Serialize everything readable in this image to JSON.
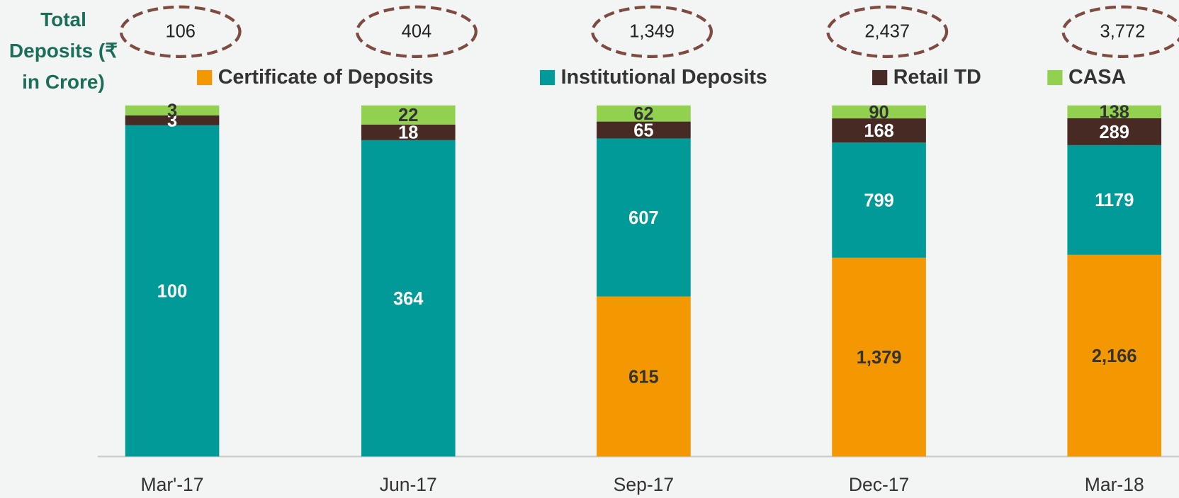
{
  "chart_data": {
    "type": "bar",
    "stacked": true,
    "normalized": true,
    "y_label": "Total Deposits (₹ in Crore)",
    "categories": [
      "Mar'-17",
      "Jun-17",
      "Sep-17",
      "Dec-17",
      "Mar-18"
    ],
    "totals": [
      106,
      404,
      1349,
      2437,
      3772
    ],
    "total_labels": [
      "106",
      "404",
      "1,349",
      "2,437",
      "3,772"
    ],
    "series": [
      {
        "name": "Certificate of Deposits",
        "color": "#f39800",
        "label_color": "#333333",
        "values": [
          null,
          null,
          615,
          1379,
          2166
        ],
        "value_labels": [
          null,
          null,
          "615",
          "1,379",
          "2,166"
        ]
      },
      {
        "name": "Institutional Deposits",
        "color": "#009b98",
        "label_color": "#ffffff",
        "values": [
          100,
          364,
          607,
          799,
          1179
        ]
      },
      {
        "name": "Retail TD",
        "color": "#472a24",
        "label_color": "#ffffff",
        "values": [
          3,
          18,
          65,
          168,
          289
        ]
      },
      {
        "name": "CASA",
        "color": "#92d050",
        "label_color": "#333333",
        "values": [
          3,
          22,
          62,
          90,
          138
        ]
      }
    ]
  }
}
